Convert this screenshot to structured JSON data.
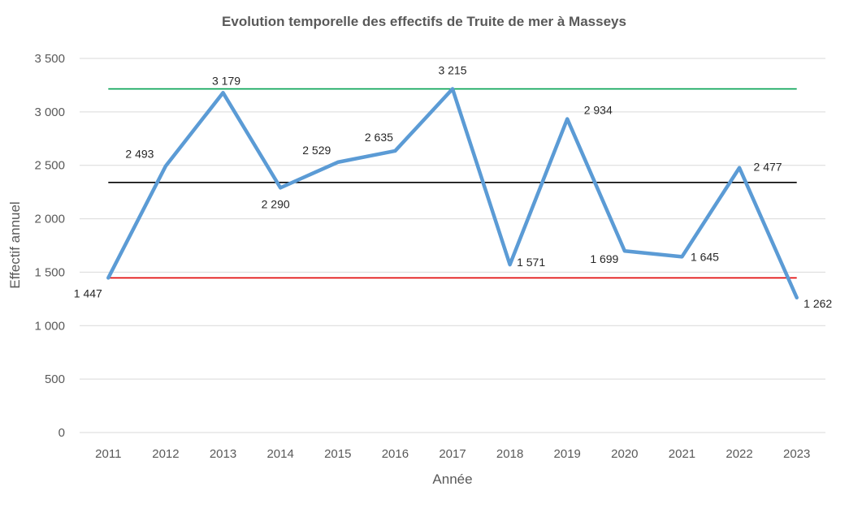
{
  "chart_data": {
    "type": "line",
    "title": "Evolution temporelle des effectifs de Truite de mer à Masseys",
    "xlabel": "Année",
    "ylabel": "Effectif annuel",
    "ylim": [
      0,
      3500
    ],
    "yticks": [
      0,
      500,
      1000,
      1500,
      2000,
      2500,
      3000,
      3500
    ],
    "ytick_labels": [
      "0",
      "500",
      "1 000",
      "1 500",
      "2 000",
      "2 500",
      "3 000",
      "3 500"
    ],
    "grid": true,
    "legend": "none",
    "categories": [
      "2011",
      "2012",
      "2013",
      "2014",
      "2015",
      "2016",
      "2017",
      "2018",
      "2019",
      "2020",
      "2021",
      "2022",
      "2023"
    ],
    "series": [
      {
        "values": [
          1447,
          2493,
          3179,
          2290,
          2529,
          2635,
          3215,
          1571,
          2934,
          1699,
          1645,
          2477,
          1262
        ],
        "labels": [
          "1 447",
          "2 493",
          "3 179",
          "2 290",
          "2 529",
          "2 635",
          "3 215",
          "1 571",
          "2 934",
          "1 699",
          "1 645",
          "2 477",
          "1 262"
        ],
        "color": "#5b9bd5"
      }
    ],
    "reference_lines": [
      {
        "value": 3215,
        "color": "#00a050"
      },
      {
        "value": 2340,
        "color": "#000000"
      },
      {
        "value": 1447,
        "color": "#e00000"
      }
    ],
    "gridline_color": "#d9d9d9"
  }
}
